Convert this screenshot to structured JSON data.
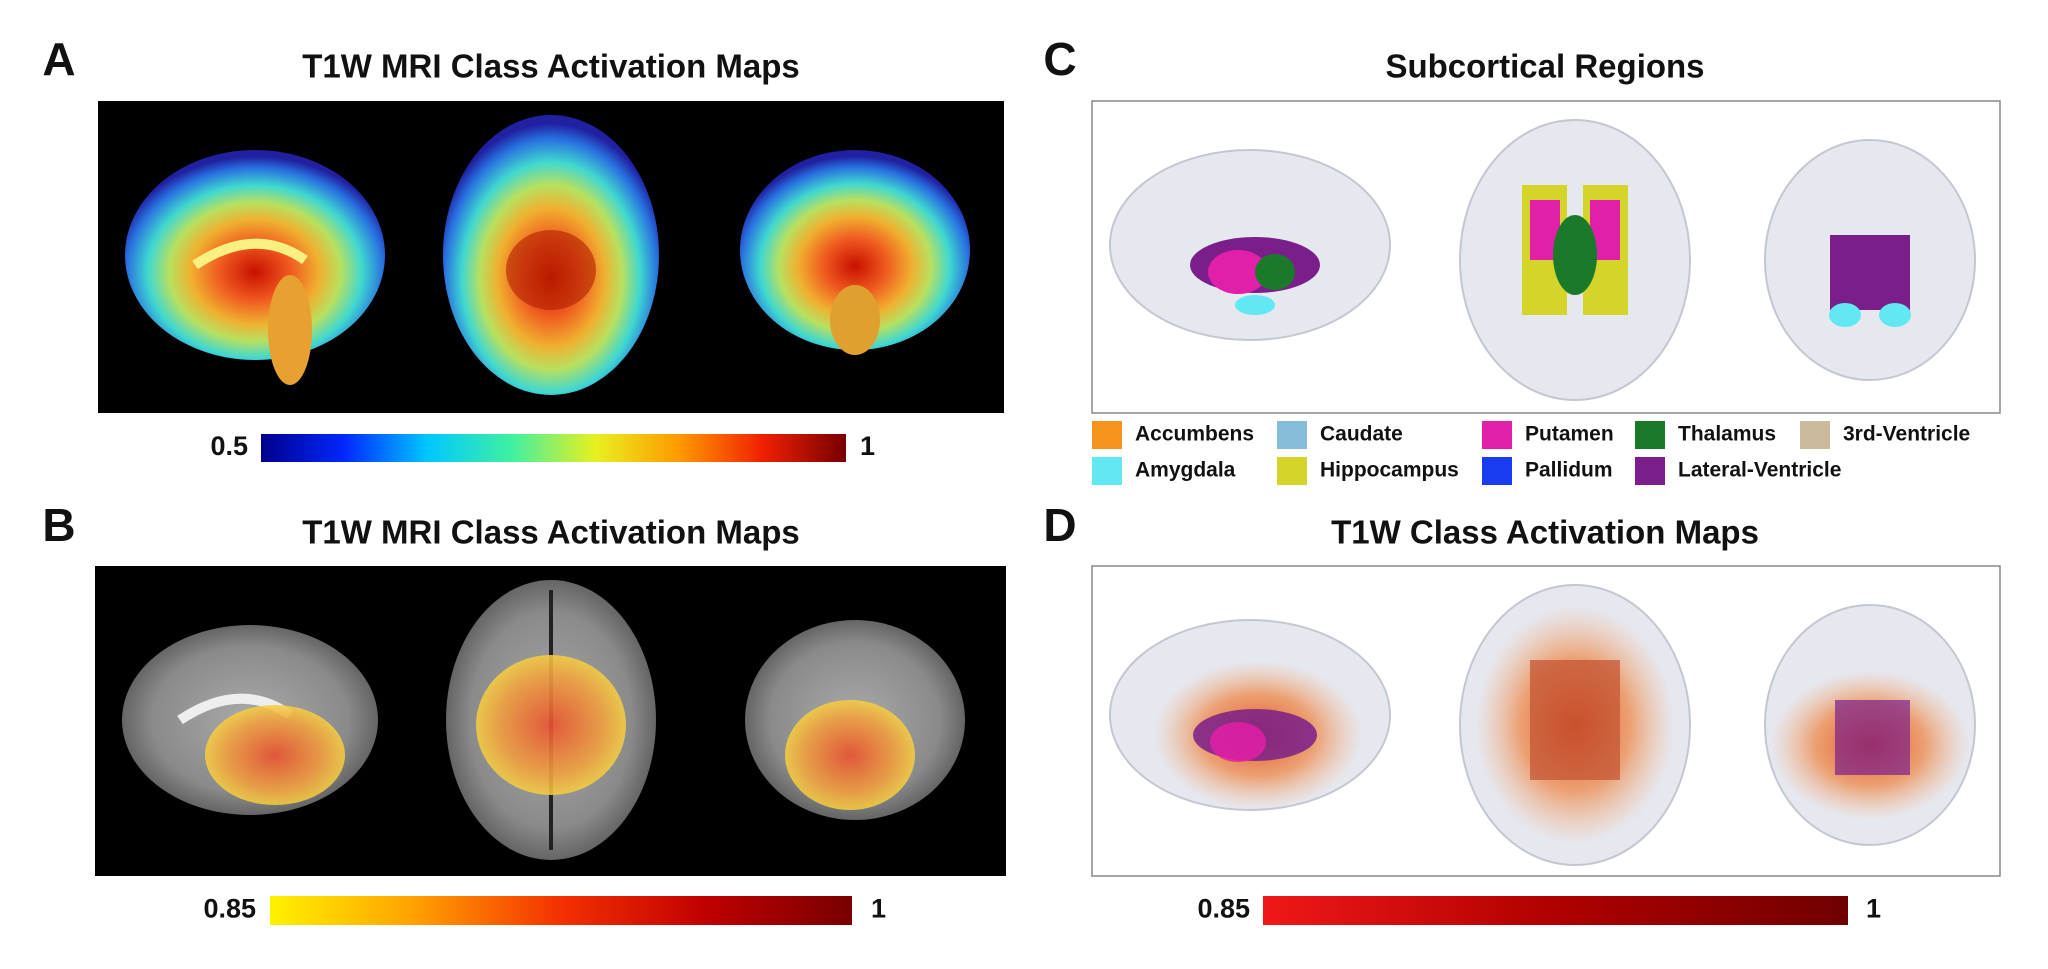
{
  "panels": [
    {
      "letter": "A",
      "title": "T1W MRI Class Activation Maps",
      "colorbar": {
        "min": 0.5,
        "max": 1,
        "colors": [
          "#00008c",
          "#0028ff",
          "#00c8ff",
          "#40f0a0",
          "#e8f020",
          "#ff9a00",
          "#f02000",
          "#780000"
        ]
      }
    },
    {
      "letter": "B",
      "title": "T1W MRI Class Activation Maps",
      "colorbar": {
        "min": 0.85,
        "max": 1,
        "colors": [
          "#fff200",
          "#ffa000",
          "#f43000",
          "#c00000",
          "#780000"
        ]
      }
    },
    {
      "letter": "C",
      "title": "Subcortical Regions",
      "legend": [
        {
          "name": "Accumbens",
          "color": "#f7941d"
        },
        {
          "name": "Caudate",
          "color": "#86bcd9"
        },
        {
          "name": "Putamen",
          "color": "#e21fa8"
        },
        {
          "name": "Thalamus",
          "color": "#1a7a2a"
        },
        {
          "name": "3rd-Ventricle",
          "color": "#cbbb9c"
        },
        {
          "name": "Amygdala",
          "color": "#62e8f2"
        },
        {
          "name": "Hippocampus",
          "color": "#d4d42a"
        },
        {
          "name": "Pallidum",
          "color": "#1a3cf0"
        },
        {
          "name": "Lateral-Ventricle",
          "color": "#7a1f8a"
        }
      ]
    },
    {
      "letter": "D",
      "title": "T1W Class Activation Maps",
      "colorbar": {
        "min": 0.85,
        "max": 1,
        "colors": [
          "#f01818",
          "#b00000",
          "#700000"
        ]
      }
    }
  ]
}
